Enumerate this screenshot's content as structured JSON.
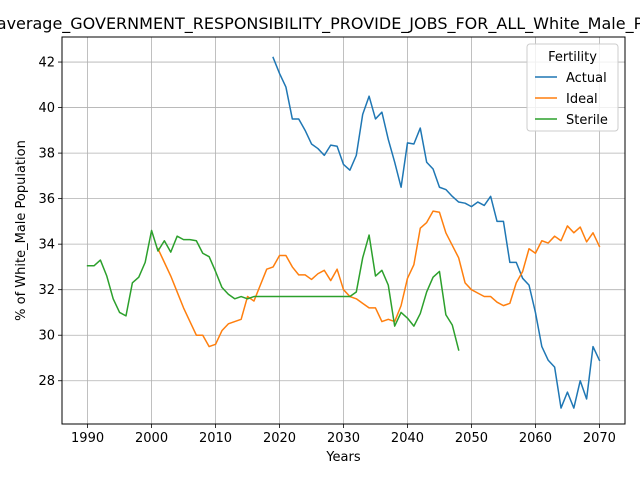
{
  "chart_data": {
    "type": "line",
    "title": "average_GOVERNMENT_RESPONSIBILITY_PROVIDE_JOBS_FOR_ALL_White_Male_P",
    "xlabel": "Years",
    "ylabel": "% of White_Male Population",
    "xlim": [
      1986,
      2074
    ],
    "ylim": [
      26.1,
      43.1
    ],
    "xticks": [
      1990,
      2000,
      2010,
      2020,
      2030,
      2040,
      2050,
      2060,
      2070
    ],
    "yticks": [
      28,
      30,
      32,
      34,
      36,
      38,
      40,
      42
    ],
    "grid": true,
    "legend": {
      "title": "Fertility",
      "position": "top-right"
    },
    "series": [
      {
        "name": "Actual",
        "color": "#1f77b4",
        "x": [
          2019,
          2020,
          2021,
          2022,
          2023,
          2024,
          2025,
          2026,
          2027,
          2028,
          2029,
          2030,
          2031,
          2032,
          2033,
          2034,
          2035,
          2036,
          2037,
          2038,
          2039,
          2040,
          2041,
          2042,
          2043,
          2044,
          2045,
          2046,
          2047,
          2048,
          2049,
          2050,
          2051,
          2052,
          2053,
          2054,
          2055,
          2056,
          2057,
          2058,
          2059,
          2060,
          2061,
          2062,
          2063,
          2064,
          2065,
          2066,
          2067,
          2068,
          2069,
          2070
        ],
        "y": [
          42.2,
          41.5,
          40.9,
          39.5,
          39.5,
          39.0,
          38.4,
          38.2,
          37.9,
          38.35,
          38.3,
          37.5,
          37.25,
          37.9,
          39.7,
          40.5,
          39.5,
          39.8,
          38.6,
          37.6,
          36.5,
          38.45,
          38.4,
          39.1,
          37.6,
          37.3,
          36.5,
          36.4,
          36.1,
          35.85,
          35.8,
          35.65,
          35.85,
          35.7,
          36.1,
          35.0,
          35.0,
          33.2,
          33.2,
          32.5,
          32.2,
          31.0,
          29.5,
          28.9,
          28.6,
          26.8,
          27.5,
          26.8,
          28.0,
          27.2,
          29.5,
          28.9
        ]
      },
      {
        "name": "Ideal",
        "color": "#ff7f0e",
        "x": [
          2001,
          2002,
          2003,
          2004,
          2005,
          2006,
          2007,
          2008,
          2009,
          2010,
          2011,
          2012,
          2013,
          2014,
          2015,
          2016,
          2017,
          2018,
          2019,
          2020,
          2021,
          2022,
          2023,
          2024,
          2025,
          2026,
          2027,
          2028,
          2029,
          2030,
          2031,
          2032,
          2033,
          2034,
          2035,
          2036,
          2037,
          2038,
          2039,
          2040,
          2041,
          2042,
          2043,
          2044,
          2045,
          2046,
          2047,
          2048,
          2049,
          2050,
          2051,
          2052,
          2053,
          2054,
          2055,
          2056,
          2057,
          2058,
          2059,
          2060,
          2061,
          2062,
          2063,
          2064,
          2065,
          2066,
          2067,
          2068,
          2069,
          2070
        ],
        "y": [
          33.8,
          33.2,
          32.6,
          31.9,
          31.2,
          30.6,
          30.0,
          30.0,
          29.5,
          29.6,
          30.2,
          30.5,
          30.6,
          30.7,
          31.7,
          31.5,
          32.2,
          32.9,
          33.0,
          33.5,
          33.5,
          33.0,
          32.65,
          32.65,
          32.45,
          32.7,
          32.85,
          32.4,
          32.9,
          32.0,
          31.7,
          31.6,
          31.4,
          31.2,
          31.2,
          30.6,
          30.7,
          30.6,
          31.3,
          32.5,
          33.1,
          34.7,
          34.95,
          35.45,
          35.4,
          34.5,
          33.95,
          33.4,
          32.3,
          32.0,
          31.85,
          31.7,
          31.7,
          31.45,
          31.3,
          31.4,
          32.3,
          32.8,
          33.8,
          33.6,
          34.15,
          34.05,
          34.35,
          34.15,
          34.8,
          34.5,
          34.75,
          34.1,
          34.5,
          33.9
        ]
      },
      {
        "name": "Sterile",
        "color": "#2ca02c",
        "x": [
          1990,
          1991,
          1992,
          1993,
          1994,
          1995,
          1996,
          1997,
          1998,
          1999,
          2000,
          2001,
          2002,
          2003,
          2004,
          2005,
          2006,
          2007,
          2008,
          2009,
          2010,
          2011,
          2012,
          2013,
          2014,
          2015,
          2016,
          2017,
          2018,
          2019,
          2020,
          2021,
          2022,
          2023,
          2024,
          2025,
          2026,
          2027,
          2028,
          2029,
          2030,
          2031,
          2032,
          2033,
          2034,
          2035,
          2036,
          2037,
          2038,
          2039,
          2040,
          2041,
          2042,
          2043,
          2044,
          2045,
          2046,
          2047,
          2048
        ],
        "y": [
          33.05,
          33.05,
          33.3,
          32.6,
          31.6,
          31.0,
          30.85,
          32.3,
          32.55,
          33.2,
          34.6,
          33.7,
          34.15,
          33.65,
          34.35,
          34.2,
          34.2,
          34.15,
          33.6,
          33.45,
          32.8,
          32.1,
          31.8,
          31.6,
          31.7,
          31.6,
          31.7,
          31.7,
          31.7,
          31.7,
          31.7,
          31.7,
          31.7,
          31.7,
          31.7,
          31.7,
          31.7,
          31.7,
          31.7,
          31.7,
          31.7,
          31.7,
          31.9,
          33.4,
          34.4,
          32.6,
          32.85,
          32.2,
          30.4,
          31.0,
          30.75,
          30.4,
          30.95,
          31.9,
          32.55,
          32.8,
          30.9,
          30.45,
          29.35
        ]
      }
    ]
  }
}
